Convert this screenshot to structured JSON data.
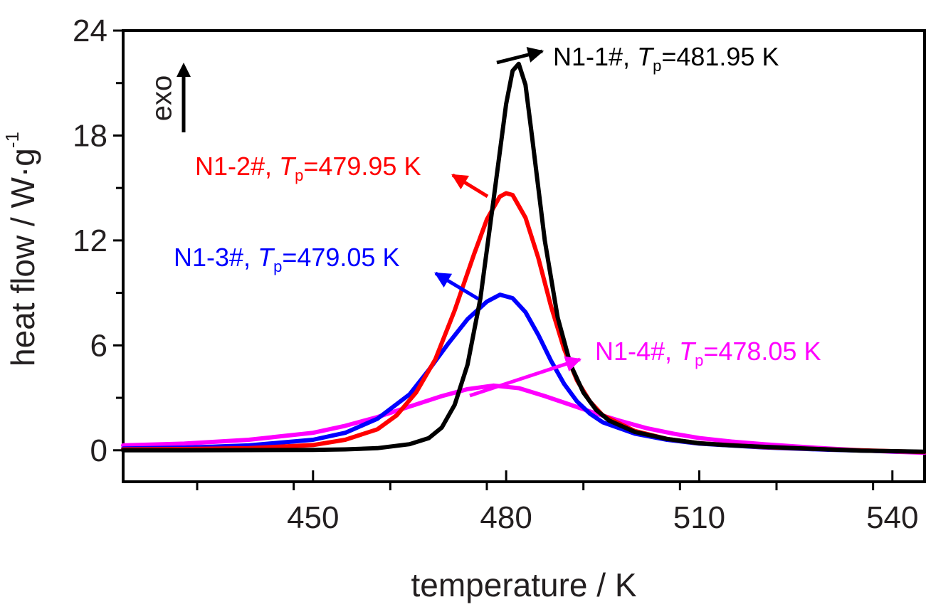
{
  "chart_data": {
    "type": "line",
    "xlabel": "temperature / K",
    "ylabel_main": "heat flow / W·g",
    "ylabel_sup": "-1",
    "xlim": [
      420.5,
      545
    ],
    "ylim": [
      -1.8,
      24
    ],
    "x_major_ticks": [
      450,
      480,
      510,
      540
    ],
    "x_minor_ticks": [
      432,
      447,
      462,
      477,
      492,
      507,
      522,
      537
    ],
    "y_major_ticks": [
      0,
      6,
      12,
      18,
      24
    ],
    "y_minor_ticks": [
      3,
      9,
      15,
      21
    ],
    "exo_label": "exo",
    "series": [
      {
        "name": "N1-1#",
        "color": "#000000",
        "peak_label": "481.95 K",
        "tp_symbol": "T",
        "tp_sub": "p",
        "points": [
          [
            420.5,
            0.0
          ],
          [
            430,
            0.0
          ],
          [
            440,
            0.01
          ],
          [
            450,
            0.02
          ],
          [
            455,
            0.05
          ],
          [
            460,
            0.12
          ],
          [
            465,
            0.35
          ],
          [
            468,
            0.7
          ],
          [
            470,
            1.3
          ],
          [
            472,
            2.6
          ],
          [
            474,
            4.9
          ],
          [
            476,
            8.7
          ],
          [
            478,
            14.2
          ],
          [
            480,
            19.8
          ],
          [
            481,
            21.7
          ],
          [
            481.95,
            22.1
          ],
          [
            483,
            20.9
          ],
          [
            484,
            18.0
          ],
          [
            486,
            12.0
          ],
          [
            488,
            7.6
          ],
          [
            490,
            4.9
          ],
          [
            492,
            3.3
          ],
          [
            494,
            2.3
          ],
          [
            496,
            1.7
          ],
          [
            500,
            1.05
          ],
          [
            505,
            0.65
          ],
          [
            510,
            0.4
          ],
          [
            515,
            0.28
          ],
          [
            520,
            0.2
          ],
          [
            525,
            0.12
          ],
          [
            530,
            0.05
          ],
          [
            535,
            -0.02
          ],
          [
            540,
            -0.05
          ],
          [
            545,
            -0.08
          ]
        ]
      },
      {
        "name": "N1-2#",
        "color": "#ff0000",
        "peak_label": "479.95 K",
        "tp_symbol": "T",
        "tp_sub": "p",
        "points": [
          [
            420.5,
            0.05
          ],
          [
            430,
            0.07
          ],
          [
            440,
            0.12
          ],
          [
            450,
            0.3
          ],
          [
            455,
            0.6
          ],
          [
            460,
            1.2
          ],
          [
            463,
            2.0
          ],
          [
            466,
            3.3
          ],
          [
            469,
            5.2
          ],
          [
            472,
            8.0
          ],
          [
            475,
            11.2
          ],
          [
            477,
            13.2
          ],
          [
            479,
            14.5
          ],
          [
            480,
            14.7
          ],
          [
            481,
            14.6
          ],
          [
            483,
            13.3
          ],
          [
            485,
            11.0
          ],
          [
            487,
            8.2
          ],
          [
            489,
            5.8
          ],
          [
            491,
            4.0
          ],
          [
            493,
            2.8
          ],
          [
            495,
            2.0
          ],
          [
            500,
            1.1
          ],
          [
            505,
            0.65
          ],
          [
            510,
            0.4
          ],
          [
            520,
            0.18
          ],
          [
            530,
            0.05
          ],
          [
            540,
            -0.05
          ],
          [
            545,
            -0.1
          ]
        ]
      },
      {
        "name": "N1-3#",
        "color": "#0000ff",
        "peak_label": "479.05 K",
        "tp_symbol": "T",
        "tp_sub": "p",
        "points": [
          [
            420.5,
            0.1
          ],
          [
            430,
            0.15
          ],
          [
            440,
            0.28
          ],
          [
            450,
            0.6
          ],
          [
            455,
            1.0
          ],
          [
            460,
            1.8
          ],
          [
            465,
            3.2
          ],
          [
            468,
            4.6
          ],
          [
            471,
            6.1
          ],
          [
            474,
            7.5
          ],
          [
            477,
            8.5
          ],
          [
            479.05,
            8.9
          ],
          [
            481,
            8.7
          ],
          [
            483,
            7.9
          ],
          [
            485,
            6.6
          ],
          [
            487,
            5.1
          ],
          [
            489,
            3.8
          ],
          [
            491,
            2.8
          ],
          [
            493,
            2.1
          ],
          [
            495,
            1.6
          ],
          [
            500,
            0.95
          ],
          [
            505,
            0.6
          ],
          [
            510,
            0.38
          ],
          [
            520,
            0.16
          ],
          [
            530,
            0.03
          ],
          [
            540,
            -0.06
          ],
          [
            545,
            -0.1
          ]
        ]
      },
      {
        "name": "N1-4#",
        "color": "#ff00ff",
        "peak_label": "478.05 K",
        "tp_symbol": "T",
        "tp_sub": "p",
        "points": [
          [
            420.5,
            0.28
          ],
          [
            430,
            0.38
          ],
          [
            440,
            0.6
          ],
          [
            450,
            1.0
          ],
          [
            455,
            1.4
          ],
          [
            460,
            1.9
          ],
          [
            465,
            2.5
          ],
          [
            470,
            3.1
          ],
          [
            474,
            3.5
          ],
          [
            478.05,
            3.7
          ],
          [
            482,
            3.55
          ],
          [
            486,
            3.1
          ],
          [
            490,
            2.6
          ],
          [
            494,
            2.1
          ],
          [
            498,
            1.65
          ],
          [
            502,
            1.25
          ],
          [
            506,
            0.95
          ],
          [
            510,
            0.7
          ],
          [
            515,
            0.5
          ],
          [
            520,
            0.35
          ],
          [
            525,
            0.22
          ],
          [
            530,
            0.1
          ],
          [
            535,
            0.0
          ],
          [
            540,
            -0.08
          ],
          [
            545,
            -0.14
          ]
        ]
      }
    ]
  }
}
